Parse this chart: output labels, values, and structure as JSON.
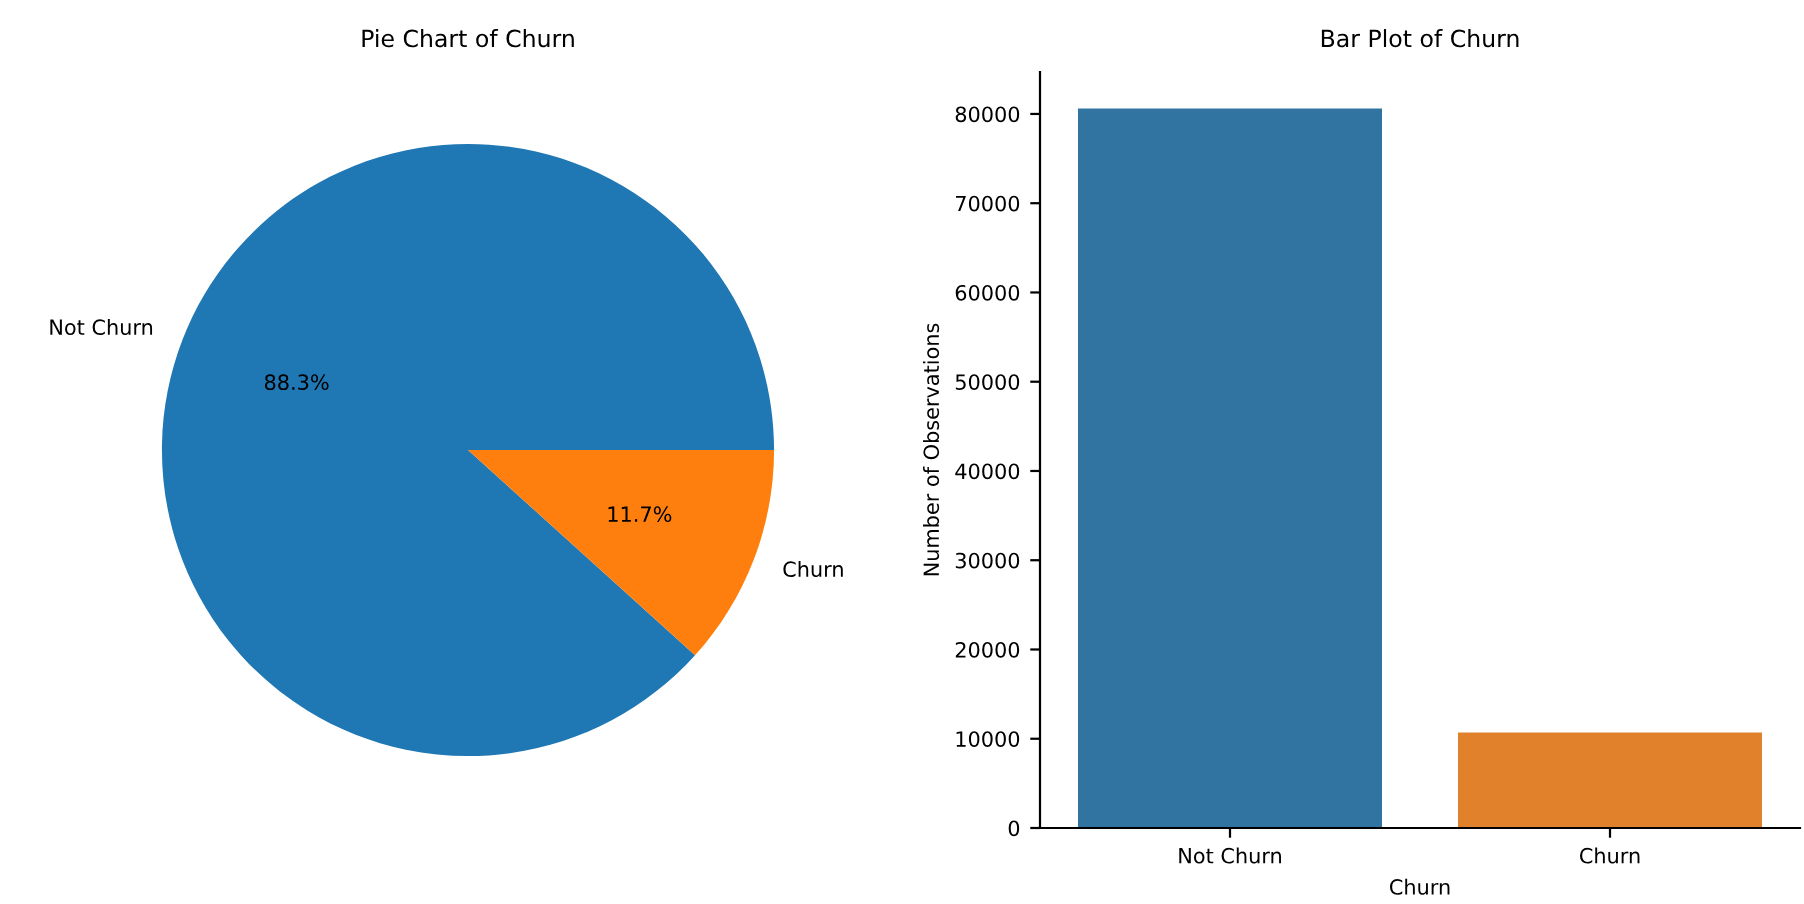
{
  "chart_data": [
    {
      "type": "pie",
      "title": "Pie Chart of Churn",
      "categories": [
        "Not Churn",
        "Churn"
      ],
      "values": [
        88.3,
        11.7
      ],
      "colors": [
        "#1f77b4",
        "#ff7f0e"
      ],
      "value_labels": [
        "88.3%",
        "11.7%"
      ]
    },
    {
      "type": "bar",
      "title": "Bar Plot of Churn",
      "xlabel": "Churn",
      "ylabel": "Number of Observations",
      "categories": [
        "Not Churn",
        "Churn"
      ],
      "values": [
        80600,
        10700
      ],
      "colors": [
        "#3274a1",
        "#e1812c"
      ],
      "ylim": [
        0,
        84700
      ],
      "yticks": [
        0,
        10000,
        20000,
        30000,
        40000,
        50000,
        60000,
        70000,
        80000
      ],
      "grid": false,
      "legend": false
    }
  ]
}
